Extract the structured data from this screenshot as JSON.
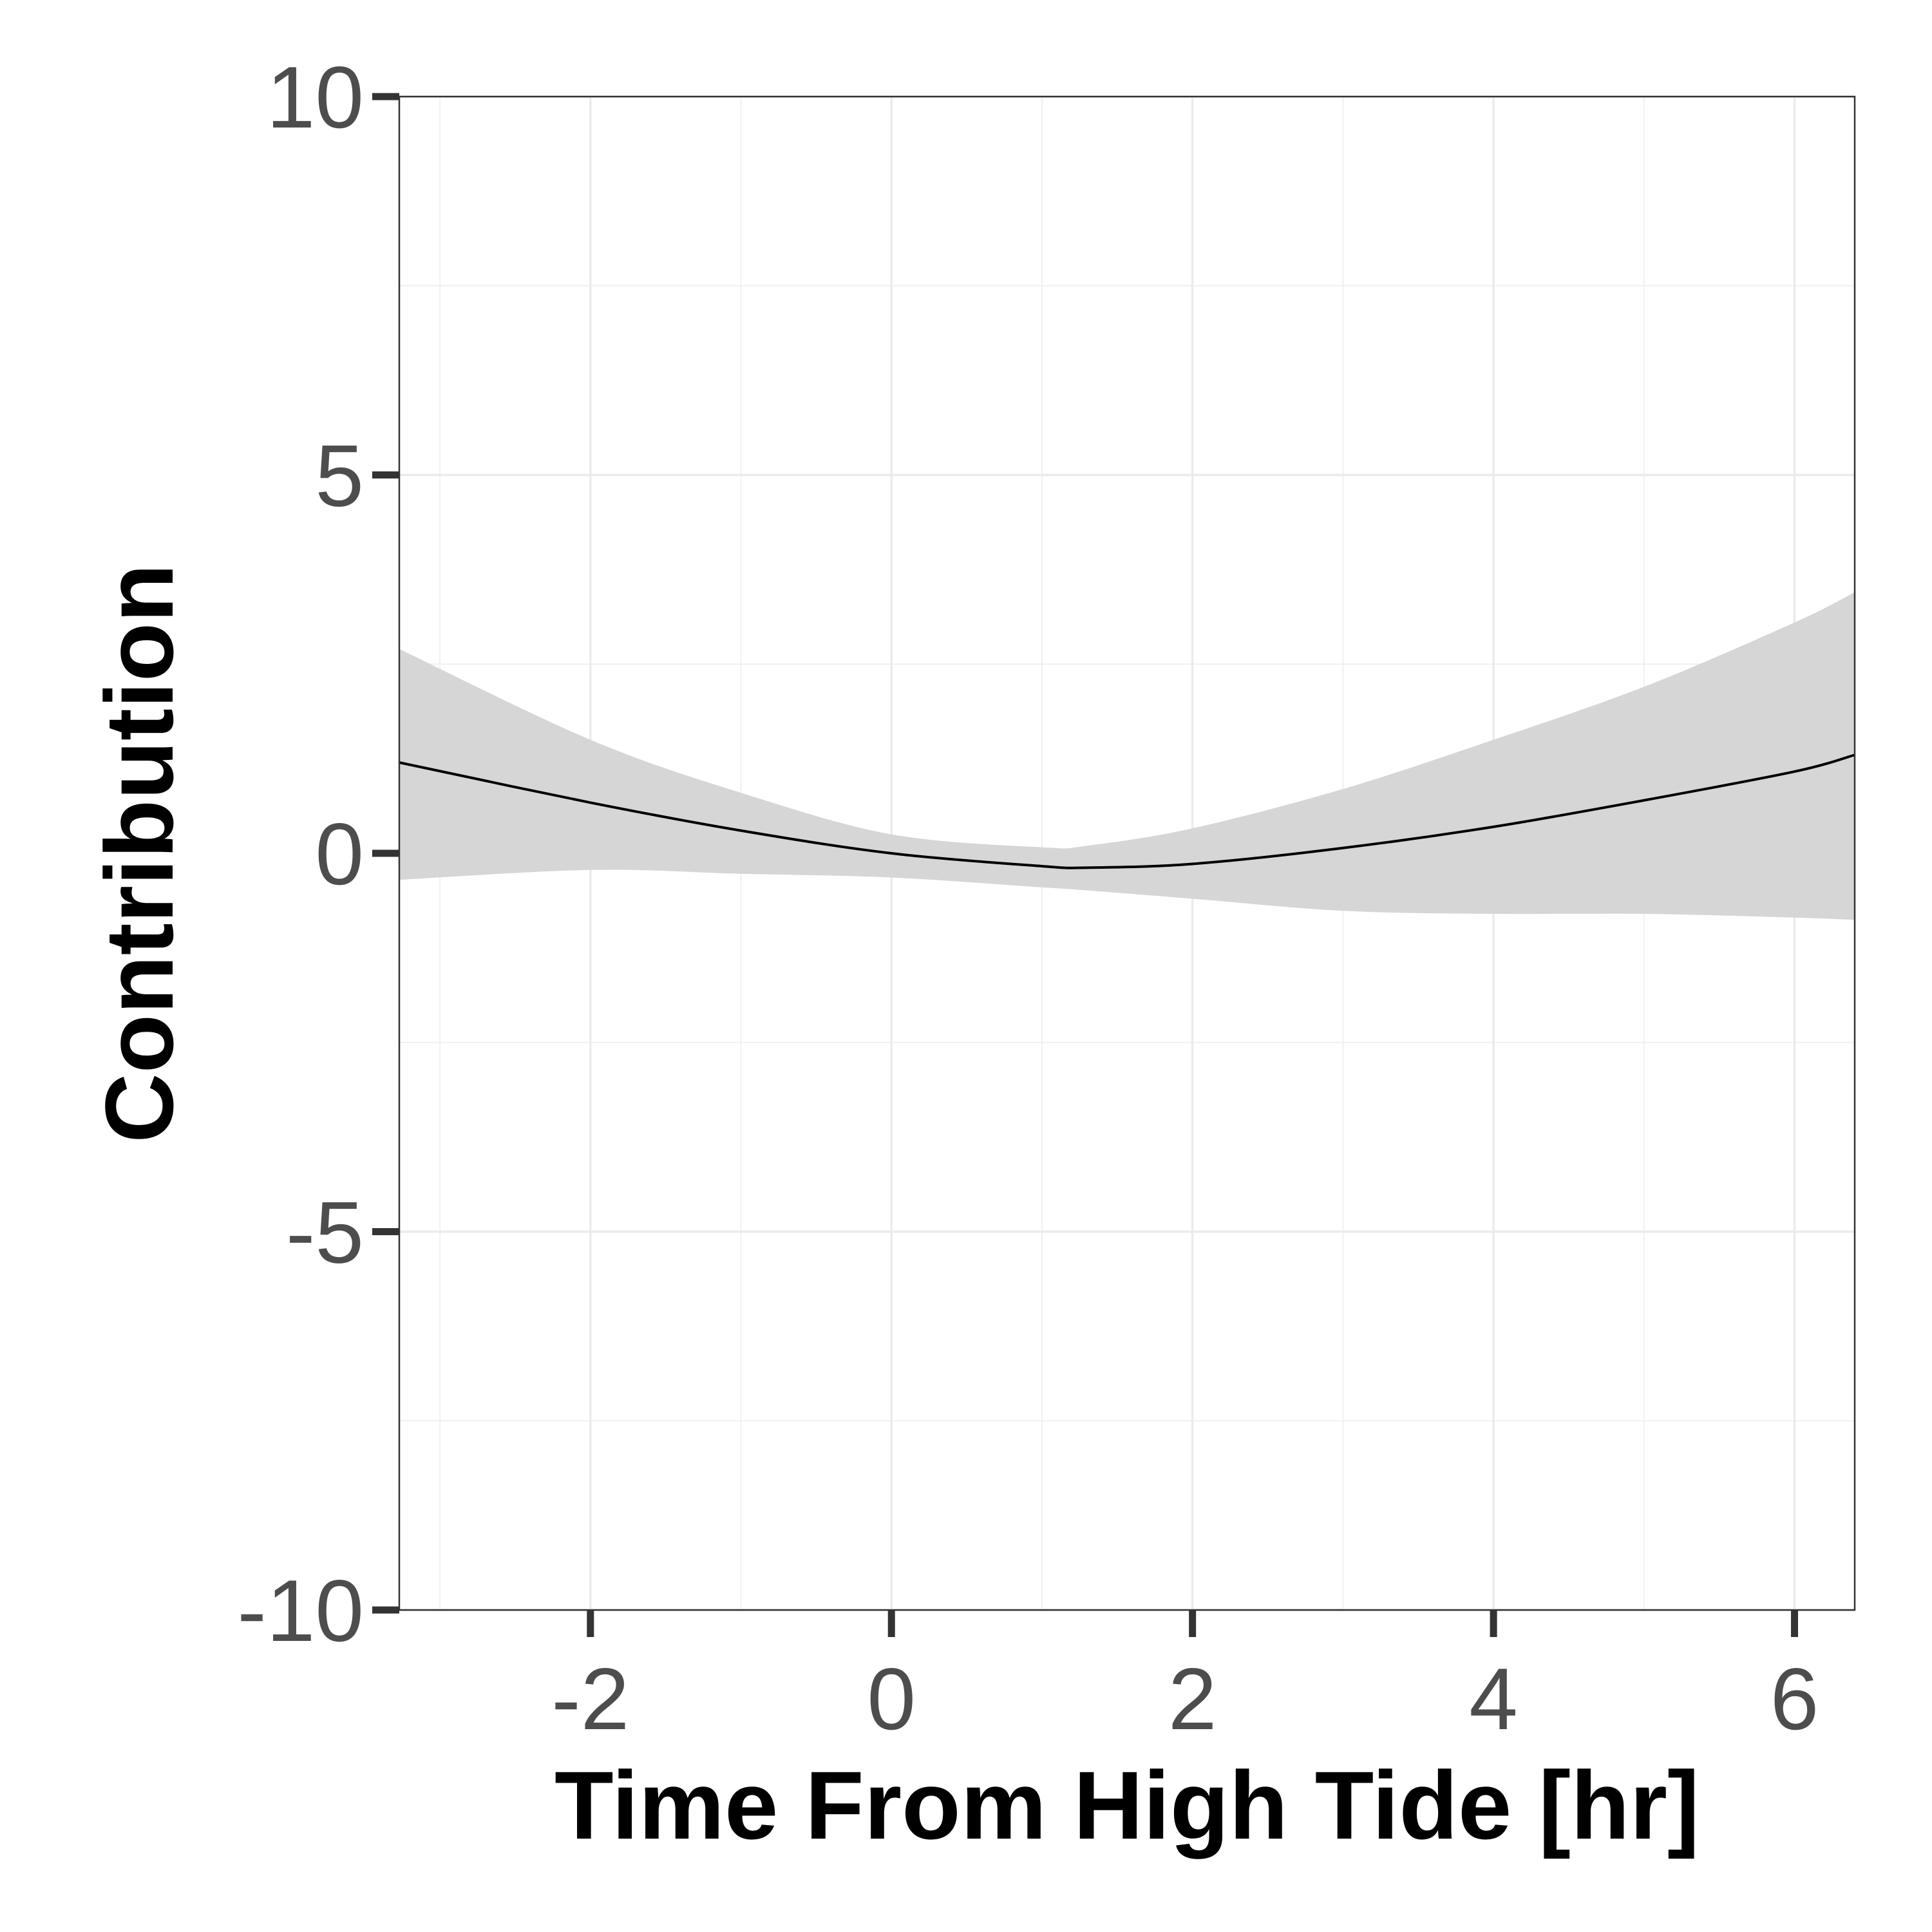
{
  "chart_data": {
    "type": "line",
    "title": "",
    "xlabel": "Time From High Tide [hr]",
    "ylabel": "Contribution",
    "xlim": [
      -3.27,
      6.4
    ],
    "ylim": [
      -10,
      10
    ],
    "x_ticks": [
      -2,
      0,
      2,
      4,
      6
    ],
    "x_tick_labels": [
      "-2",
      "0",
      "2",
      "4",
      "6"
    ],
    "y_ticks": [
      -10,
      -5,
      0,
      5,
      10
    ],
    "y_tick_labels": [
      "-10",
      "-5",
      "0",
      "5",
      "10"
    ],
    "grid": true,
    "legend": "none",
    "series": [
      {
        "x": [
          -3.27,
          -2,
          -1,
          0,
          1,
          1.3,
          2,
          3,
          4,
          5,
          6,
          6.4
        ],
        "y": [
          1.2,
          0.67,
          0.3,
          0.0,
          -0.17,
          -0.19,
          -0.14,
          0.07,
          0.35,
          0.7,
          1.08,
          1.3
        ],
        "lower": [
          -0.35,
          -0.22,
          -0.27,
          -0.32,
          -0.45,
          -0.49,
          -0.6,
          -0.76,
          -0.8,
          -0.8,
          -0.85,
          -0.88
        ],
        "upper": [
          2.7,
          1.5,
          0.8,
          0.25,
          0.08,
          0.1,
          0.33,
          0.85,
          1.5,
          2.2,
          3.05,
          3.45
        ],
        "color": "#000000",
        "band_color": "#d6d6d6"
      }
    ]
  }
}
